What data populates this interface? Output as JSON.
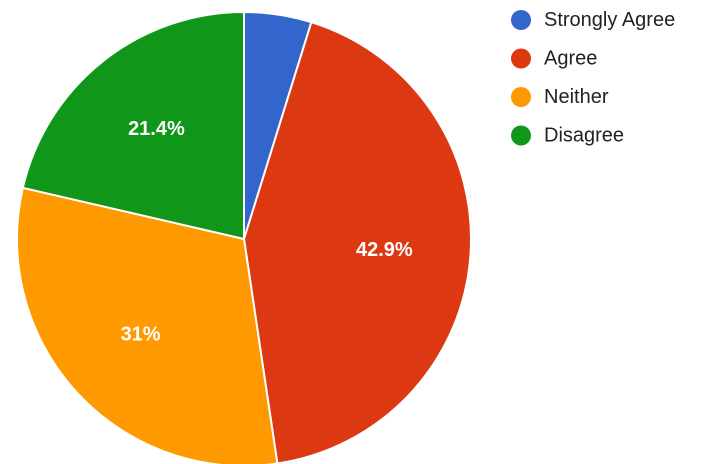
{
  "chart_data": {
    "type": "pie",
    "title": "",
    "categories": [
      "Strongly Agree",
      "Agree",
      "Neither",
      "Disagree"
    ],
    "values": [
      4.8,
      42.9,
      31.0,
      21.4
    ],
    "data_labels": [
      "",
      "42.9%",
      "31%",
      "21.4%"
    ],
    "colors": [
      "#3366cc",
      "#dc3912",
      "#ff9900",
      "#109618"
    ],
    "start_angle_deg": 0,
    "direction": "clockwise",
    "legend_position": "right"
  }
}
